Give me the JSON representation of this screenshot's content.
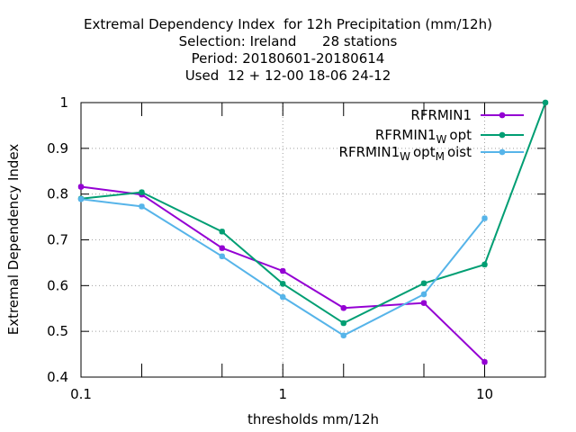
{
  "chart_data": {
    "type": "line",
    "title_lines": [
      "Extremal Dependency Index  for 12h Precipitation (mm/12h)",
      "Selection: Ireland      28 stations",
      "Period: 20180601-20180614",
      "Used  12 + 12-00 18-06 24-12"
    ],
    "xlabel": "thresholds mm/12h",
    "ylabel": "Extremal Dependency Index",
    "xscale": "log",
    "xlim": [
      0.1,
      20
    ],
    "ylim": [
      0.4,
      1.0
    ],
    "x_ticks": [
      0.1,
      0.2,
      0.5,
      1,
      2,
      5,
      10,
      20
    ],
    "x_tick_labels": [
      {
        "value": 0.1,
        "label": "0.1"
      },
      {
        "value": 1,
        "label": "1"
      },
      {
        "value": 10,
        "label": "10"
      }
    ],
    "y_ticks": [
      {
        "value": 0.4,
        "label": "0.4"
      },
      {
        "value": 0.5,
        "label": "0.5"
      },
      {
        "value": 0.6,
        "label": "0.6"
      },
      {
        "value": 0.7,
        "label": "0.7"
      },
      {
        "value": 0.8,
        "label": "0.8"
      },
      {
        "value": 0.9,
        "label": "0.9"
      },
      {
        "value": 1.0,
        "label": "1"
      }
    ],
    "grid": true,
    "legend_position": "top-right",
    "series": [
      {
        "name": "RFRMIN1",
        "legend": {
          "base": "RFRMIN1",
          "parts": []
        },
        "color": "#9400d3",
        "x": [
          0.1,
          0.2,
          0.5,
          1,
          2,
          5,
          10
        ],
        "y": [
          0.816,
          0.799,
          0.682,
          0.632,
          0.551,
          0.562,
          0.433
        ]
      },
      {
        "name": "RFRMIN1Wopt",
        "legend": {
          "base": "RFRMIN1",
          "parts": [
            {
              "sub": "W"
            },
            {
              "text": "opt"
            }
          ]
        },
        "color": "#009e73",
        "x": [
          0.1,
          0.2,
          0.5,
          1,
          2,
          5,
          10,
          20
        ],
        "y": [
          0.79,
          0.804,
          0.718,
          0.604,
          0.518,
          0.605,
          0.646,
          1.0
        ]
      },
      {
        "name": "RFRMIN1WoptMoist",
        "legend": {
          "base": "RFRMIN1",
          "parts": [
            {
              "sub": "W"
            },
            {
              "text": "opt"
            },
            {
              "sub": "M"
            },
            {
              "text": "oist"
            }
          ]
        },
        "color": "#56b4e9",
        "x": [
          0.1,
          0.2,
          0.5,
          1,
          2,
          5,
          10
        ],
        "y": [
          0.789,
          0.773,
          0.664,
          0.575,
          0.491,
          0.581,
          0.747
        ]
      }
    ]
  }
}
